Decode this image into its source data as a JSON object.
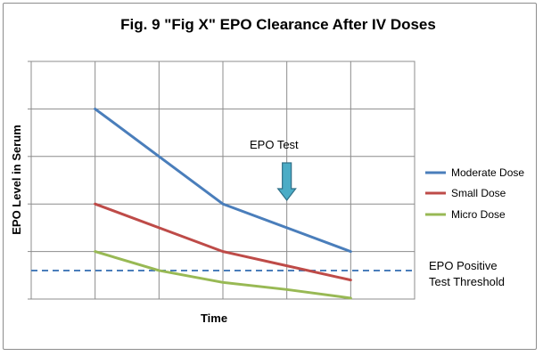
{
  "chart_data": {
    "type": "line",
    "title": "Fig. 9 \"Fig X\" EPO Clearance After IV Doses",
    "xlabel": "Time",
    "ylabel": "EPO Level in Serum",
    "grid": true,
    "legend_position": "right",
    "x": [
      1,
      2,
      3,
      4,
      5
    ],
    "xlim": [
      0,
      6
    ],
    "ylim": [
      0,
      5
    ],
    "series": [
      {
        "name": "Moderate Dose",
        "color": "#4a7ebb",
        "values": [
          4,
          3,
          2,
          1.5,
          1
        ]
      },
      {
        "name": "Small Dose",
        "color": "#be4b48",
        "values": [
          2,
          1.5,
          1,
          0.7,
          0.4
        ]
      },
      {
        "name": "Micro Dose",
        "color": "#98b954",
        "values": [
          1,
          0.6,
          0.35,
          0.2,
          0.02
        ]
      }
    ],
    "threshold": {
      "label_line1": "EPO Positive",
      "label_line2": "Test Threshold",
      "value": 0.6,
      "color": "#4a7ebb"
    },
    "annotation": {
      "text": "EPO Test",
      "x": 4,
      "color": "#4bacc6"
    }
  }
}
